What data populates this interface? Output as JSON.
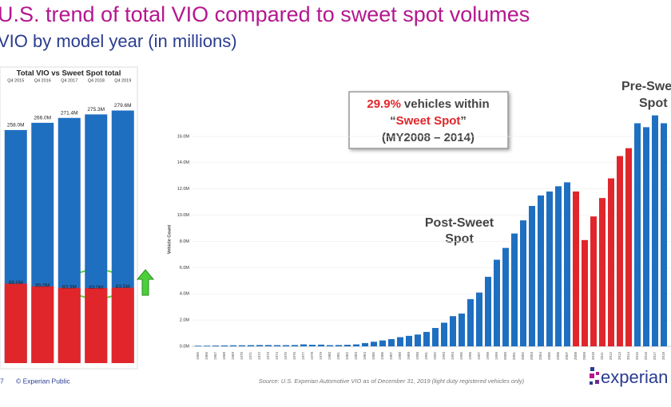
{
  "slide": {
    "title": "U.S. trend of total VIO compared to sweet spot volumes",
    "subtitle": "VIO by model year (in millions)",
    "page_number": "7",
    "copyright": "© Experian Public",
    "source": "Source: U.S. Experian Automotive VIO as of December 31, 2019  (light duty registered vehicles only)",
    "logo": "experian"
  },
  "chart_data": [
    {
      "type": "overlay_bar",
      "title": "Total VIO vs Sweet Spot total",
      "categories": [
        "Q4 2015",
        "Q4 2016",
        "Q4 2017",
        "Q4 2018",
        "Q4 2019"
      ],
      "series": [
        {
          "color": "#1f6fc1",
          "values": [
            258.0,
            266.0,
            271.4,
            275.3,
            279.6
          ],
          "value_labels": [
            "258.0M",
            "266.0M",
            "271.4M",
            "275.3M",
            "279.6M"
          ]
        },
        {
          "color": "#e0262b",
          "values": [
            88.0,
            85.0,
            83.3,
            83.0,
            83.5
          ],
          "value_labels": [
            "88.0M",
            "85.0M",
            "83.3M",
            "83.0M",
            "83.5M"
          ]
        }
      ]
    },
    {
      "type": "bar",
      "ylabel": "Vehicle Count",
      "categories": [
        "1965",
        "1966",
        "1967",
        "1968",
        "1969",
        "1970",
        "1971",
        "1972",
        "1973",
        "1974",
        "1975",
        "1976",
        "1977",
        "1978",
        "1979",
        "1980",
        "1981",
        "1982",
        "1983",
        "1984",
        "1985",
        "1986",
        "1987",
        "1988",
        "1989",
        "1990",
        "1991",
        "1992",
        "1993",
        "1994",
        "1995",
        "1996",
        "1997",
        "1998",
        "1999",
        "2000",
        "2001",
        "2002",
        "2003",
        "2004",
        "2005",
        "2006",
        "2007",
        "2008",
        "2009",
        "2010",
        "2011",
        "2012",
        "2013",
        "2014",
        "2015",
        "2016",
        "2017",
        "2018"
      ],
      "values": [
        0.05,
        0.05,
        0.06,
        0.07,
        0.08,
        0.08,
        0.09,
        0.1,
        0.1,
        0.09,
        0.09,
        0.1,
        0.15,
        0.12,
        0.13,
        0.09,
        0.1,
        0.12,
        0.15,
        0.25,
        0.35,
        0.45,
        0.55,
        0.7,
        0.8,
        0.9,
        1.1,
        1.4,
        1.8,
        2.3,
        2.5,
        3.6,
        4.1,
        5.3,
        6.6,
        7.5,
        8.6,
        9.6,
        10.7,
        11.5,
        11.8,
        12.2,
        12.5,
        11.8,
        8.1,
        9.9,
        11.3,
        12.8,
        14.5,
        15.1,
        17.0,
        16.7,
        17.6,
        17.0
      ],
      "colors": [
        "#1f6fc1",
        "#1f6fc1",
        "#1f6fc1",
        "#1f6fc1",
        "#1f6fc1",
        "#1f6fc1",
        "#1f6fc1",
        "#1f6fc1",
        "#1f6fc1",
        "#1f6fc1",
        "#1f6fc1",
        "#1f6fc1",
        "#1f6fc1",
        "#1f6fc1",
        "#1f6fc1",
        "#1f6fc1",
        "#1f6fc1",
        "#1f6fc1",
        "#1f6fc1",
        "#1f6fc1",
        "#1f6fc1",
        "#1f6fc1",
        "#1f6fc1",
        "#1f6fc1",
        "#1f6fc1",
        "#1f6fc1",
        "#1f6fc1",
        "#1f6fc1",
        "#1f6fc1",
        "#1f6fc1",
        "#1f6fc1",
        "#1f6fc1",
        "#1f6fc1",
        "#1f6fc1",
        "#1f6fc1",
        "#1f6fc1",
        "#1f6fc1",
        "#1f6fc1",
        "#1f6fc1",
        "#1f6fc1",
        "#1f6fc1",
        "#1f6fc1",
        "#1f6fc1",
        "#e0262b",
        "#e0262b",
        "#e0262b",
        "#e0262b",
        "#e0262b",
        "#e0262b",
        "#e0262b",
        "#1f6fc1",
        "#1f6fc1",
        "#1f6fc1",
        "#1f6fc1"
      ],
      "ylim": [
        0,
        18
      ],
      "yticks": [
        {
          "value": 0,
          "label": "0.0M"
        },
        {
          "value": 2,
          "label": "2.0M"
        },
        {
          "value": 4,
          "label": "4.0M"
        },
        {
          "value": 6,
          "label": "6.0M"
        },
        {
          "value": 8,
          "label": "8.0M"
        },
        {
          "value": 10,
          "label": "10.0M"
        },
        {
          "value": 12,
          "label": "12.0M"
        },
        {
          "value": 14,
          "label": "14.0M"
        },
        {
          "value": 16,
          "label": "16.0M"
        }
      ],
      "grid": true,
      "annotations": {
        "share": "29.9%",
        "share_text": "vehicles within",
        "open_quote": "“",
        "sweet": "Sweet Spot",
        "close_quote": "”",
        "range": "(MY2008 – 2014)",
        "post_1": "Post-Sweet",
        "post_2": "Spot",
        "pre_1": "Pre-Sweet",
        "pre_2": "Spot"
      }
    }
  ]
}
